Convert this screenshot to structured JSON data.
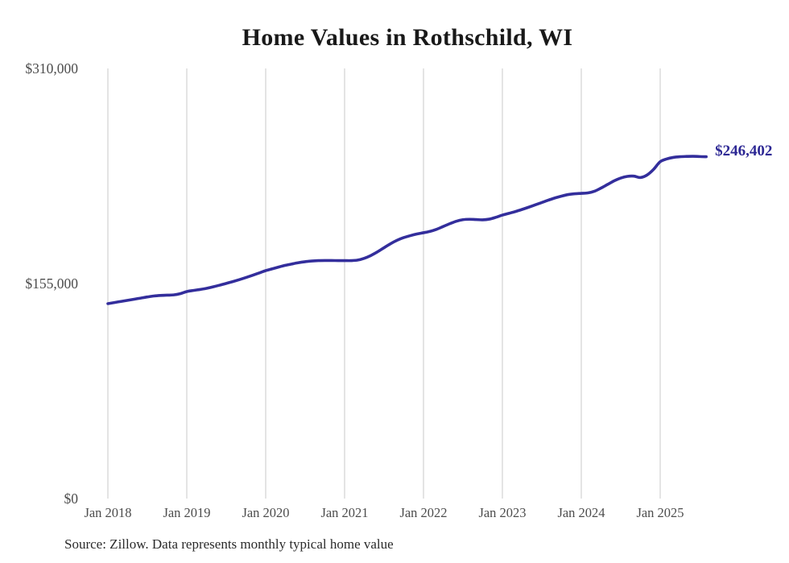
{
  "page": {
    "source_note": "Source: Zillow. Data represents monthly typical home value"
  },
  "colors": {
    "line": "#332e9c",
    "end_label": "#2d2894",
    "grid": "#c9c9c9",
    "axis_text": "#4d4d4d",
    "title_text": "#191919",
    "background": "#ffffff"
  },
  "chart_data": {
    "type": "line",
    "title": "Home Values in Rothschild, WI",
    "series_name": "Monthly typical home value",
    "legend": "none",
    "grid": "vertical-only",
    "ylim": [
      0,
      310000
    ],
    "y_ticks": [
      {
        "label": "$0",
        "value": 0
      },
      {
        "label": "$155,000",
        "value": 155000
      },
      {
        "label": "$310,000",
        "value": 310000
      }
    ],
    "x_ticks": [
      {
        "label": "Jan 2018",
        "month_index": 0
      },
      {
        "label": "Jan 2019",
        "month_index": 12
      },
      {
        "label": "Jan 2020",
        "month_index": 24
      },
      {
        "label": "Jan 2021",
        "month_index": 36
      },
      {
        "label": "Jan 2022",
        "month_index": 48
      },
      {
        "label": "Jan 2023",
        "month_index": 60
      },
      {
        "label": "Jan 2024",
        "month_index": 72
      },
      {
        "label": "Jan 2025",
        "month_index": 84
      }
    ],
    "last_point_label": "$246,402",
    "last_value": 246402,
    "x": [
      "2018-01",
      "2018-02",
      "2018-03",
      "2018-04",
      "2018-05",
      "2018-06",
      "2018-07",
      "2018-08",
      "2018-09",
      "2018-10",
      "2018-11",
      "2018-12",
      "2019-01",
      "2019-02",
      "2019-03",
      "2019-04",
      "2019-05",
      "2019-06",
      "2019-07",
      "2019-08",
      "2019-09",
      "2019-10",
      "2019-11",
      "2019-12",
      "2020-01",
      "2020-02",
      "2020-03",
      "2020-04",
      "2020-05",
      "2020-06",
      "2020-07",
      "2020-08",
      "2020-09",
      "2020-10",
      "2020-11",
      "2020-12",
      "2021-01",
      "2021-02",
      "2021-03",
      "2021-04",
      "2021-05",
      "2021-06",
      "2021-07",
      "2021-08",
      "2021-09",
      "2021-10",
      "2021-11",
      "2021-12",
      "2022-01",
      "2022-02",
      "2022-03",
      "2022-04",
      "2022-05",
      "2022-06",
      "2022-07",
      "2022-08",
      "2022-09",
      "2022-10",
      "2022-11",
      "2022-12",
      "2023-01",
      "2023-02",
      "2023-03",
      "2023-04",
      "2023-05",
      "2023-06",
      "2023-07",
      "2023-08",
      "2023-09",
      "2023-10",
      "2023-11",
      "2023-12",
      "2024-01",
      "2024-02",
      "2024-03",
      "2024-04",
      "2024-05",
      "2024-06",
      "2024-07",
      "2024-08",
      "2024-09",
      "2024-10",
      "2024-11",
      "2024-12",
      "2025-01",
      "2025-02",
      "2025-03",
      "2025-04",
      "2025-05",
      "2025-06",
      "2025-07",
      "2025-08"
    ],
    "values": [
      140500,
      141300,
      142100,
      142900,
      143700,
      144500,
      145300,
      146000,
      146400,
      146600,
      146800,
      147700,
      149200,
      150000,
      150700,
      151500,
      152600,
      153800,
      155100,
      156400,
      157800,
      159300,
      160900,
      162600,
      164300,
      165600,
      166900,
      168100,
      169100,
      170000,
      170700,
      171200,
      171500,
      171600,
      171600,
      171500,
      171500,
      171500,
      171900,
      173200,
      175200,
      177800,
      180800,
      183700,
      186200,
      188100,
      189500,
      190700,
      191600,
      192600,
      194100,
      196100,
      198100,
      199900,
      201000,
      201300,
      201100,
      200900,
      201400,
      202700,
      204300,
      205600,
      206900,
      208400,
      210000,
      211700,
      213400,
      215100,
      216700,
      218000,
      219100,
      219700,
      220000,
      220300,
      221500,
      223800,
      226400,
      229000,
      231000,
      232200,
      232400,
      231400,
      233200,
      237300,
      242800,
      244800,
      245900,
      246400,
      246600,
      246700,
      246500,
      246402
    ]
  }
}
